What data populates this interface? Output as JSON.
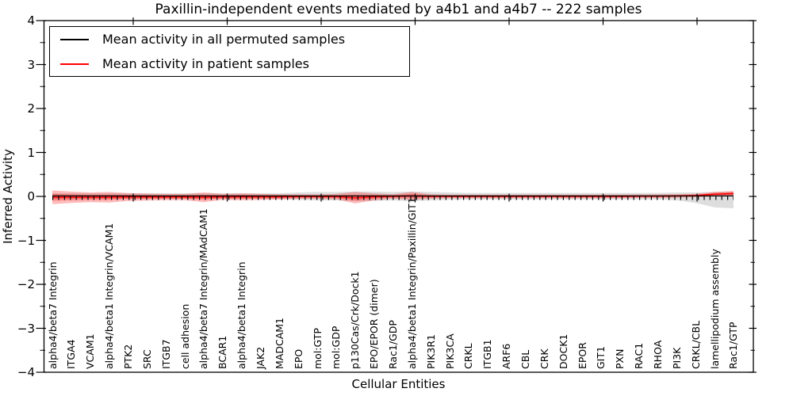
{
  "title": "Paxillin-independent events mediated by a4b1 and a4b7 -- 222 samples",
  "axes": {
    "xlabel": "Cellular Entities",
    "ylabel": "Inferred Activity",
    "ytick_labels": [
      "4",
      "3",
      "2",
      "1",
      "0",
      "−1",
      "−2",
      "−3",
      "−4"
    ],
    "ytick_values": [
      4,
      3,
      2,
      1,
      0,
      -1,
      -2,
      -3,
      -4
    ]
  },
  "legend": {
    "items": [
      {
        "label": "Mean activity in all permuted samples",
        "color": "#000000"
      },
      {
        "label": "Mean activity in patient samples",
        "color": "#ff0000"
      }
    ]
  },
  "chart_data": {
    "type": "line",
    "title": "Paxillin-independent events mediated by a4b1 and a4b7 -- 222 samples",
    "xlabel": "Cellular Entities",
    "ylabel": "Inferred Activity",
    "ylim": [
      -4,
      4
    ],
    "grid": false,
    "legend_position": "upper left",
    "categories": [
      "alpha4/beta7 Integrin",
      "ITGA4",
      "VCAM1",
      "alpha4/beta1 Integrin/VCAM1",
      "PTK2",
      "SRC",
      "ITGB7",
      "cell adhesion",
      "alpha4/beta7 Integrin/MAdCAM1",
      "BCAR1",
      "alpha4/beta1 Integrin",
      "JAK2",
      "MADCAM1",
      "EPO",
      "mol:GTP",
      "mol:GDP",
      "p130Cas/Crk/Dock1",
      "EPO/EPOR (dimer)",
      "Rac1/GDP",
      "alpha4/beta1 Integrin/Paxillin/GIT1",
      "PIK3R1",
      "PIK3CA",
      "CRKL",
      "ITGB1",
      "ARF6",
      "CBL",
      "CRK",
      "DOCK1",
      "EPOR",
      "GIT1",
      "PXN",
      "RAC1",
      "RHOA",
      "PI3K",
      "CRKL/CBL",
      "lamellipodium assembly",
      "Rac1/GTP"
    ],
    "series": [
      {
        "name": "Mean activity in all permuted samples",
        "color": "#000000",
        "values": [
          0.01,
          0.01,
          0.01,
          0.01,
          0.01,
          0.01,
          0.01,
          0.01,
          0.01,
          0.01,
          0.01,
          0.01,
          0.01,
          0.01,
          0.01,
          0.01,
          0.01,
          0.01,
          0.01,
          0.01,
          0.01,
          0.01,
          0.01,
          0.01,
          0.01,
          0.01,
          0.01,
          0.01,
          0.01,
          0.01,
          0.01,
          0.01,
          0.01,
          0.01,
          0.01,
          0.01,
          0.01
        ]
      },
      {
        "name": "Mean activity in patient samples",
        "color": "#ff0000",
        "values": [
          -0.02,
          -0.02,
          -0.02,
          -0.02,
          -0.015,
          -0.015,
          -0.015,
          -0.015,
          -0.02,
          -0.01,
          -0.01,
          -0.01,
          -0.01,
          -0.005,
          -0.005,
          -0.005,
          -0.03,
          -0.01,
          0,
          0.01,
          0,
          0,
          0,
          0,
          0,
          0,
          0,
          0,
          0,
          0,
          0,
          0.005,
          0.005,
          0.01,
          0.02,
          0.05,
          0.065
        ]
      }
    ],
    "bands": [
      {
        "name": "permuted-samples-spread",
        "color": "#000000",
        "opacity": 0.13,
        "upper": [
          0.07,
          0.07,
          0.07,
          0.07,
          0.07,
          0.07,
          0.07,
          0.07,
          0.07,
          0.07,
          0.07,
          0.07,
          0.07,
          0.09,
          0.1,
          0.1,
          0.11,
          0.11,
          0.1,
          0.11,
          0.1,
          0.09,
          0.08,
          0.08,
          0.08,
          0.08,
          0.08,
          0.08,
          0.08,
          0.08,
          0.08,
          0.08,
          0.08,
          0.09,
          0.09,
          0.1,
          0.1
        ],
        "lower": [
          -0.06,
          -0.06,
          -0.06,
          -0.06,
          -0.06,
          -0.06,
          -0.06,
          -0.06,
          -0.06,
          -0.06,
          -0.06,
          -0.06,
          -0.06,
          -0.08,
          -0.09,
          -0.09,
          -0.1,
          -0.1,
          -0.09,
          -0.11,
          -0.09,
          -0.08,
          -0.07,
          -0.07,
          -0.07,
          -0.07,
          -0.07,
          -0.07,
          -0.07,
          -0.07,
          -0.07,
          -0.07,
          -0.07,
          -0.09,
          -0.15,
          -0.25,
          -0.27
        ]
      },
      {
        "name": "patient-samples-spread",
        "color": "#ff0000",
        "opacity": 0.27,
        "upper": [
          0.135,
          0.11,
          0.09,
          0.1,
          0.075,
          0.065,
          0.055,
          0.055,
          0.09,
          0.06,
          0.07,
          0.06,
          0.05,
          0.045,
          0.045,
          0.055,
          0.1,
          0.07,
          0.05,
          0.1,
          0.05,
          0.04,
          0.04,
          0.04,
          0.04,
          0.04,
          0.04,
          0.04,
          0.04,
          0.04,
          0.04,
          0.045,
          0.045,
          0.05,
          0.06,
          0.1,
          0.125
        ],
        "lower": [
          -0.175,
          -0.15,
          -0.13,
          -0.14,
          -0.105,
          -0.095,
          -0.085,
          -0.085,
          -0.13,
          -0.08,
          -0.09,
          -0.08,
          -0.07,
          -0.055,
          -0.055,
          -0.065,
          -0.16,
          -0.09,
          -0.05,
          -0.08,
          -0.05,
          -0.04,
          -0.04,
          -0.04,
          -0.04,
          -0.04,
          -0.04,
          -0.04,
          -0.04,
          -0.04,
          -0.04,
          -0.035,
          -0.035,
          -0.03,
          -0.02,
          0,
          0.005
        ]
      }
    ]
  }
}
